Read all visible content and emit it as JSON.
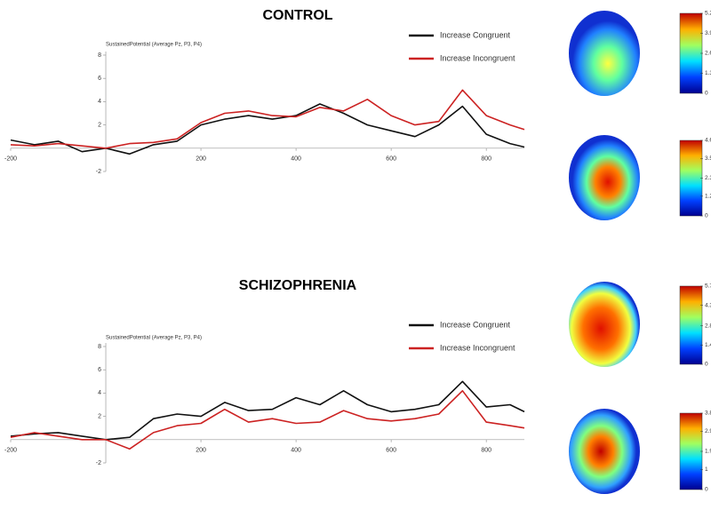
{
  "chart_data": [
    {
      "type": "line",
      "title": "CONTROL",
      "y_label": "SustainedPotential (Average Pz, P3, P4)",
      "x": [
        -200,
        -150,
        -100,
        -50,
        0,
        50,
        100,
        150,
        200,
        250,
        300,
        350,
        400,
        450,
        500,
        550,
        600,
        650,
        700,
        750,
        800,
        850,
        880
      ],
      "series": [
        {
          "name": "Increase Congruent",
          "color": "#111111",
          "values": [
            0.7,
            0.3,
            0.6,
            -0.3,
            0,
            -0.5,
            0.3,
            0.6,
            2.0,
            2.5,
            2.8,
            2.5,
            2.8,
            3.8,
            3.0,
            2.0,
            1.5,
            1.0,
            2.0,
            3.6,
            1.2,
            0.4,
            0.1
          ]
        },
        {
          "name": "Increase Incongruent",
          "color": "#cc2222",
          "values": [
            0.3,
            0.2,
            0.4,
            0.2,
            0,
            0.4,
            0.5,
            0.8,
            2.2,
            3.0,
            3.2,
            2.8,
            2.7,
            3.5,
            3.2,
            4.2,
            2.8,
            2.0,
            2.3,
            5.0,
            2.8,
            2.0,
            1.6
          ]
        }
      ],
      "xlim": [
        -200,
        880
      ],
      "ylim": [
        -2,
        8
      ],
      "xticks": [
        -200,
        200,
        400,
        600,
        800
      ],
      "yticks": [
        -2,
        2,
        4,
        6,
        8
      ],
      "colorbars": [
        {
          "clim": [
            0,
            5.2
          ],
          "ticks": [
            0,
            1.3,
            2.6,
            3.9,
            5.2
          ]
        },
        {
          "clim": [
            0,
            4.6
          ],
          "ticks": [
            0,
            1.2,
            2.3,
            3.5,
            4.6
          ]
        }
      ]
    },
    {
      "type": "line",
      "title": "SCHIZOPHRENIA",
      "y_label": "SustainedPotential (Average Pz, P3, P4)",
      "x": [
        -200,
        -150,
        -100,
        -50,
        0,
        50,
        100,
        150,
        200,
        250,
        300,
        350,
        400,
        450,
        500,
        550,
        600,
        650,
        700,
        750,
        800,
        850,
        880
      ],
      "series": [
        {
          "name": "Increase Congruent",
          "color": "#111111",
          "values": [
            0.3,
            0.5,
            0.6,
            0.3,
            0,
            0.2,
            1.8,
            2.2,
            2.0,
            3.2,
            2.5,
            2.6,
            3.6,
            3.0,
            4.2,
            3.0,
            2.4,
            2.6,
            3.0,
            5.0,
            2.8,
            3.0,
            2.4
          ]
        },
        {
          "name": "Increase Incongruent",
          "color": "#cc2222",
          "values": [
            0.2,
            0.6,
            0.3,
            0.0,
            0,
            -0.8,
            0.6,
            1.2,
            1.4,
            2.6,
            1.5,
            1.8,
            1.4,
            1.5,
            2.5,
            1.8,
            1.6,
            1.8,
            2.2,
            4.2,
            1.5,
            1.2,
            1.0
          ]
        }
      ],
      "xlim": [
        -200,
        880
      ],
      "ylim": [
        -2,
        8
      ],
      "xticks": [
        -200,
        200,
        400,
        600,
        800
      ],
      "yticks": [
        -2,
        2,
        4,
        6,
        8
      ],
      "colorbars": [
        {
          "clim": [
            0,
            5.7
          ],
          "ticks": [
            0,
            1.4,
            2.8,
            4.3,
            5.7
          ]
        },
        {
          "clim": [
            0,
            3.8
          ],
          "ticks": [
            0,
            1,
            1.9,
            2.9,
            3.8
          ]
        }
      ]
    }
  ]
}
